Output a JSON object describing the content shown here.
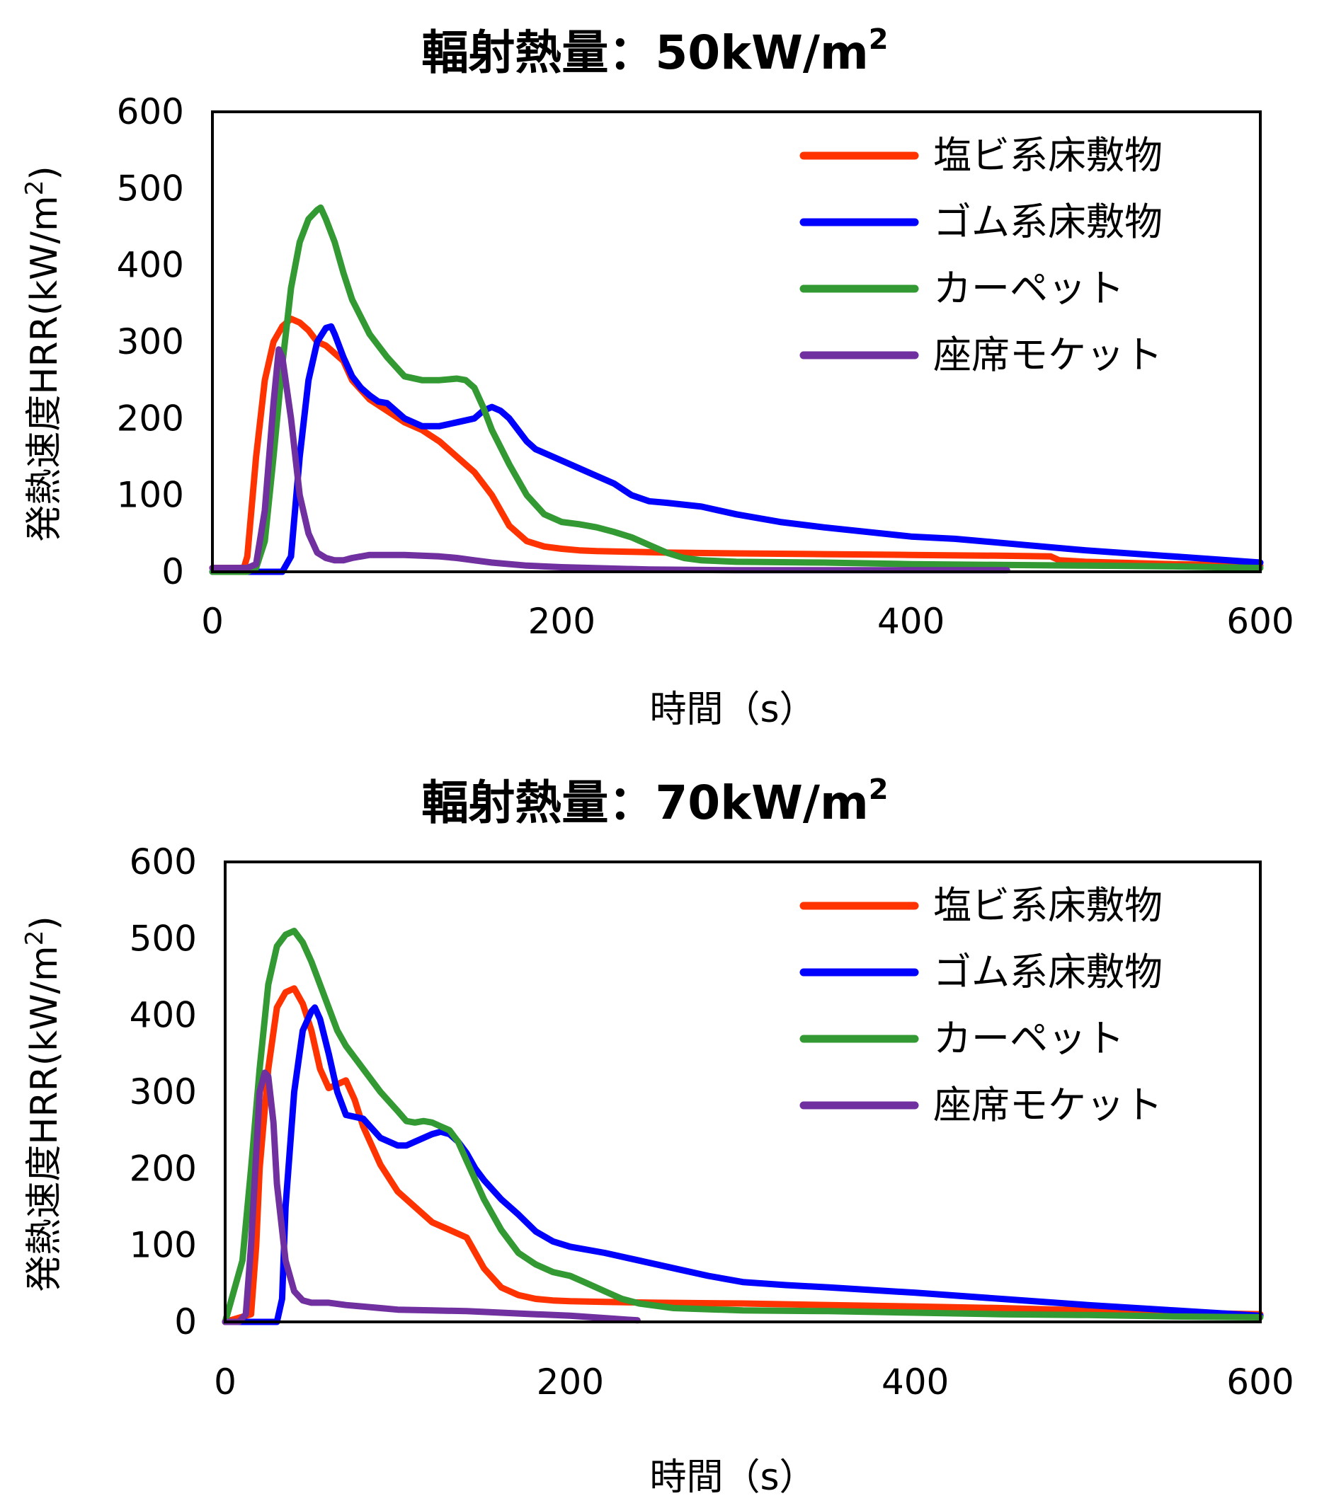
{
  "charts": [
    {
      "title_main": "輻射熱量：50kW/m",
      "title_sup": "2",
      "ylabel_main": "発熱速度HRR(kW/m",
      "ylabel_sup": "2",
      "ylabel_close": ")",
      "xlabel": "時間（s）",
      "xticks": [
        "0",
        "200",
        "400",
        "600"
      ],
      "yticks": [
        "0",
        "100",
        "200",
        "300",
        "400",
        "500",
        "600"
      ],
      "legend": [
        "塩ビ系床敷物",
        "ゴム系床敷物",
        "カーペット",
        "座席モケット"
      ]
    },
    {
      "title_main": "輻射熱量：70kW/m",
      "title_sup": "2",
      "ylabel_main": "発熱速度HRR(kW/m",
      "ylabel_sup": "2",
      "ylabel_close": ")",
      "xlabel": "時間（s）",
      "xticks": [
        "0",
        "200",
        "400",
        "600"
      ],
      "yticks": [
        "0",
        "100",
        "200",
        "300",
        "400",
        "500",
        "600"
      ],
      "legend": [
        "塩ビ系床敷物",
        "ゴム系床敷物",
        "カーペット",
        "座席モケット"
      ]
    }
  ],
  "colors": {
    "pvc": "#ff3300",
    "rubber": "#0000ff",
    "carpet": "#339933",
    "moquette": "#7030a0"
  },
  "chart_data": [
    {
      "type": "line",
      "title": "輻射熱量：50kW/m2",
      "xlabel": "時間（s）",
      "ylabel": "発熱速度HRR(kW/m2)",
      "xlim": [
        0,
        600
      ],
      "ylim": [
        0,
        600
      ],
      "grid": false,
      "legend_position": "top-right",
      "series": [
        {
          "name": "塩ビ系床敷物",
          "color": "#ff3300",
          "x": [
            0,
            18,
            20,
            25,
            30,
            35,
            40,
            45,
            50,
            55,
            60,
            65,
            70,
            75,
            80,
            90,
            100,
            110,
            120,
            130,
            140,
            150,
            160,
            170,
            180,
            190,
            200,
            210,
            220,
            240,
            260,
            300,
            350,
            400,
            450,
            480,
            485,
            500,
            550,
            600
          ],
          "y": [
            5,
            5,
            20,
            150,
            250,
            300,
            320,
            330,
            325,
            315,
            300,
            295,
            285,
            275,
            250,
            225,
            210,
            195,
            185,
            170,
            150,
            130,
            100,
            60,
            40,
            33,
            30,
            28,
            27,
            26,
            25,
            24,
            23,
            22,
            21,
            20,
            15,
            13,
            10,
            8
          ]
        },
        {
          "name": "ゴム系床敷物",
          "color": "#0000ff",
          "x": [
            0,
            10,
            20,
            40,
            45,
            50,
            55,
            60,
            65,
            68,
            70,
            75,
            80,
            85,
            90,
            95,
            100,
            105,
            110,
            115,
            120,
            130,
            140,
            150,
            155,
            160,
            165,
            170,
            175,
            180,
            185,
            190,
            200,
            210,
            220,
            230,
            240,
            250,
            260,
            280,
            300,
            325,
            350,
            375,
            400,
            425,
            450,
            500,
            550,
            600
          ],
          "y": [
            0,
            0,
            0,
            0,
            20,
            150,
            250,
            300,
            318,
            320,
            310,
            280,
            255,
            240,
            230,
            222,
            220,
            210,
            200,
            195,
            190,
            190,
            195,
            200,
            210,
            215,
            210,
            200,
            185,
            170,
            160,
            155,
            145,
            135,
            125,
            115,
            100,
            92,
            90,
            85,
            75,
            65,
            58,
            52,
            46,
            43,
            38,
            28,
            20,
            12
          ]
        },
        {
          "name": "カーペット",
          "color": "#339933",
          "x": [
            0,
            20,
            25,
            30,
            35,
            40,
            45,
            50,
            55,
            60,
            62,
            65,
            70,
            75,
            80,
            90,
            100,
            110,
            120,
            130,
            140,
            145,
            150,
            155,
            160,
            170,
            180,
            190,
            200,
            210,
            220,
            230,
            240,
            250,
            260,
            270,
            280,
            300,
            350,
            400,
            450,
            500,
            550,
            600
          ],
          "y": [
            0,
            0,
            5,
            40,
            150,
            270,
            370,
            430,
            460,
            472,
            475,
            460,
            430,
            390,
            355,
            310,
            280,
            255,
            250,
            250,
            252,
            250,
            240,
            215,
            185,
            140,
            100,
            75,
            65,
            62,
            58,
            52,
            45,
            35,
            25,
            18,
            15,
            13,
            12,
            10,
            9,
            8,
            7,
            5
          ]
        },
        {
          "name": "座席モケット",
          "color": "#7030a0",
          "x": [
            0,
            10,
            20,
            25,
            30,
            35,
            38,
            40,
            45,
            50,
            55,
            60,
            65,
            70,
            75,
            80,
            90,
            100,
            110,
            120,
            130,
            140,
            150,
            160,
            180,
            200,
            250,
            300,
            350,
            400,
            455
          ],
          "y": [
            5,
            5,
            5,
            10,
            80,
            220,
            290,
            280,
            200,
            100,
            50,
            25,
            18,
            15,
            15,
            18,
            22,
            22,
            22,
            21,
            20,
            18,
            15,
            12,
            8,
            6,
            3,
            2,
            2,
            2,
            2
          ]
        }
      ]
    },
    {
      "type": "line",
      "title": "輻射熱量：70kW/m2",
      "xlabel": "時間（s）",
      "ylabel": "発熱速度HRR(kW/m2)",
      "xlim": [
        0,
        600
      ],
      "ylim": [
        0,
        600
      ],
      "grid": false,
      "legend_position": "top-right",
      "series": [
        {
          "name": "塩ビ系床敷物",
          "color": "#ff3300",
          "x": [
            0,
            15,
            18,
            20,
            25,
            30,
            35,
            40,
            45,
            50,
            55,
            60,
            65,
            70,
            75,
            80,
            90,
            100,
            110,
            120,
            130,
            140,
            145,
            150,
            160,
            170,
            180,
            190,
            200,
            220,
            250,
            300,
            350,
            400,
            450,
            500,
            550,
            600
          ],
          "y": [
            0,
            10,
            100,
            200,
            330,
            410,
            430,
            435,
            415,
            380,
            330,
            305,
            310,
            315,
            290,
            255,
            205,
            170,
            150,
            130,
            120,
            110,
            90,
            70,
            45,
            35,
            30,
            28,
            27,
            26,
            25,
            24,
            22,
            20,
            18,
            15,
            12,
            10
          ]
        },
        {
          "name": "ゴム系床敷物",
          "color": "#0000ff",
          "x": [
            0,
            20,
            30,
            33,
            35,
            40,
            45,
            50,
            52,
            55,
            60,
            65,
            70,
            80,
            90,
            100,
            105,
            110,
            115,
            120,
            125,
            130,
            135,
            140,
            145,
            150,
            160,
            170,
            180,
            190,
            200,
            220,
            240,
            260,
            280,
            300,
            325,
            350,
            400,
            450,
            500,
            550,
            600
          ],
          "y": [
            0,
            0,
            0,
            30,
            150,
            300,
            380,
            405,
            410,
            395,
            350,
            300,
            270,
            265,
            240,
            230,
            230,
            235,
            240,
            245,
            248,
            245,
            235,
            220,
            200,
            185,
            160,
            140,
            118,
            105,
            98,
            90,
            80,
            70,
            60,
            52,
            48,
            45,
            38,
            30,
            22,
            15,
            8
          ]
        },
        {
          "name": "カーペット",
          "color": "#339933",
          "x": [
            0,
            10,
            15,
            20,
            25,
            30,
            35,
            40,
            45,
            50,
            55,
            60,
            65,
            70,
            75,
            80,
            90,
            100,
            105,
            110,
            115,
            120,
            125,
            130,
            135,
            140,
            150,
            160,
            170,
            180,
            190,
            200,
            210,
            220,
            230,
            240,
            260,
            300,
            350,
            400,
            450,
            500,
            550,
            600
          ],
          "y": [
            0,
            80,
            200,
            330,
            440,
            490,
            505,
            510,
            495,
            470,
            440,
            410,
            380,
            360,
            345,
            330,
            300,
            275,
            262,
            260,
            262,
            260,
            255,
            250,
            235,
            210,
            160,
            120,
            90,
            75,
            65,
            60,
            50,
            40,
            30,
            24,
            18,
            15,
            14,
            12,
            10,
            9,
            7,
            6
          ]
        },
        {
          "name": "座席モケット",
          "color": "#7030a0",
          "x": [
            0,
            8,
            12,
            15,
            18,
            20,
            23,
            25,
            28,
            30,
            35,
            40,
            45,
            50,
            60,
            70,
            80,
            90,
            100,
            120,
            140,
            160,
            180,
            200,
            220,
            239
          ],
          "y": [
            0,
            0,
            10,
            100,
            220,
            300,
            325,
            320,
            260,
            180,
            80,
            40,
            28,
            25,
            25,
            22,
            20,
            18,
            16,
            15,
            14,
            12,
            10,
            8,
            5,
            2
          ]
        }
      ]
    }
  ]
}
